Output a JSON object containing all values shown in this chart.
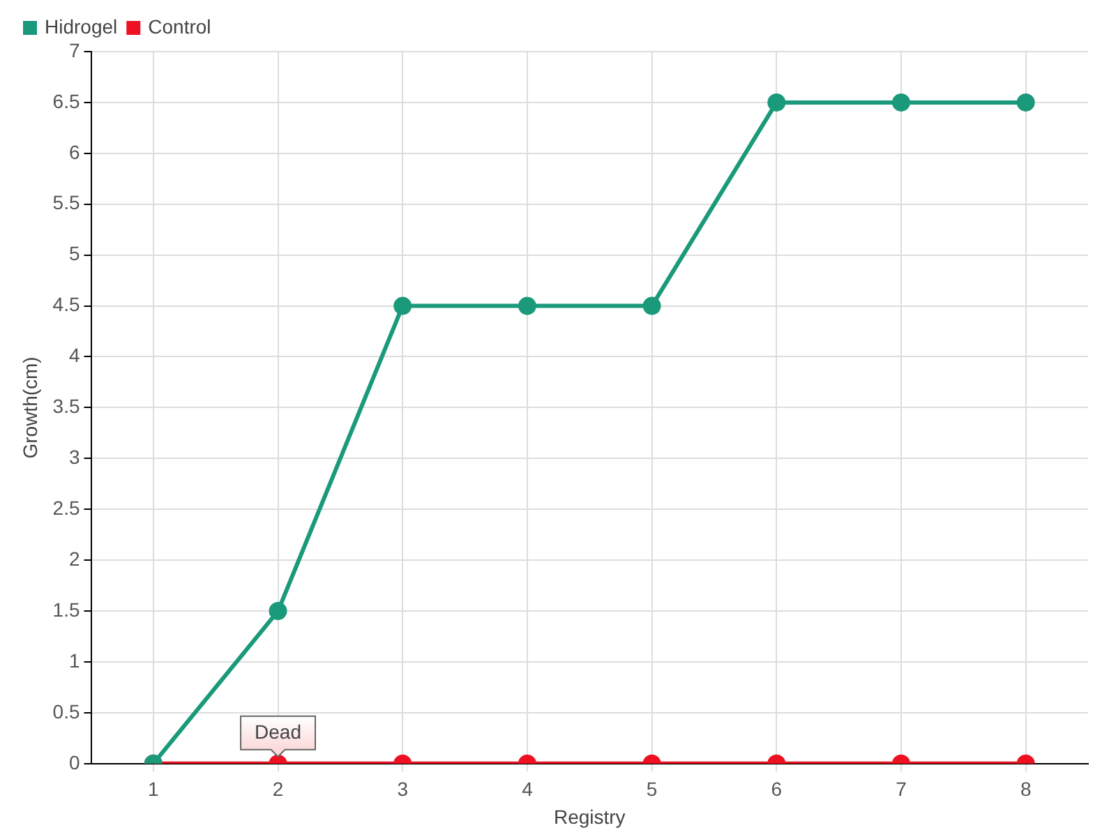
{
  "chart_data": {
    "type": "line",
    "xlabel": "Registry",
    "ylabel": "Growth(cm)",
    "categories": [
      "1",
      "2",
      "3",
      "4",
      "5",
      "6",
      "7",
      "8"
    ],
    "series": [
      {
        "name": "Hidrogel",
        "color": "#1a9a7a",
        "values": [
          0,
          1.5,
          4.5,
          4.5,
          4.5,
          6.5,
          6.5,
          6.5
        ]
      },
      {
        "name": "Control",
        "color": "#ee1122",
        "values": [
          0,
          0,
          0,
          0,
          0,
          0,
          0,
          0
        ]
      }
    ],
    "ylim": [
      0,
      7
    ],
    "yticks": [
      0,
      0.5,
      1,
      1.5,
      2,
      2.5,
      3,
      3.5,
      4,
      4.5,
      5,
      5.5,
      6,
      6.5,
      7
    ],
    "grid": true,
    "legend": "top left",
    "marker": "circle",
    "line_style": "solid",
    "annotations": [
      {
        "text": "Dead",
        "x": "2",
        "y": 0
      }
    ]
  }
}
